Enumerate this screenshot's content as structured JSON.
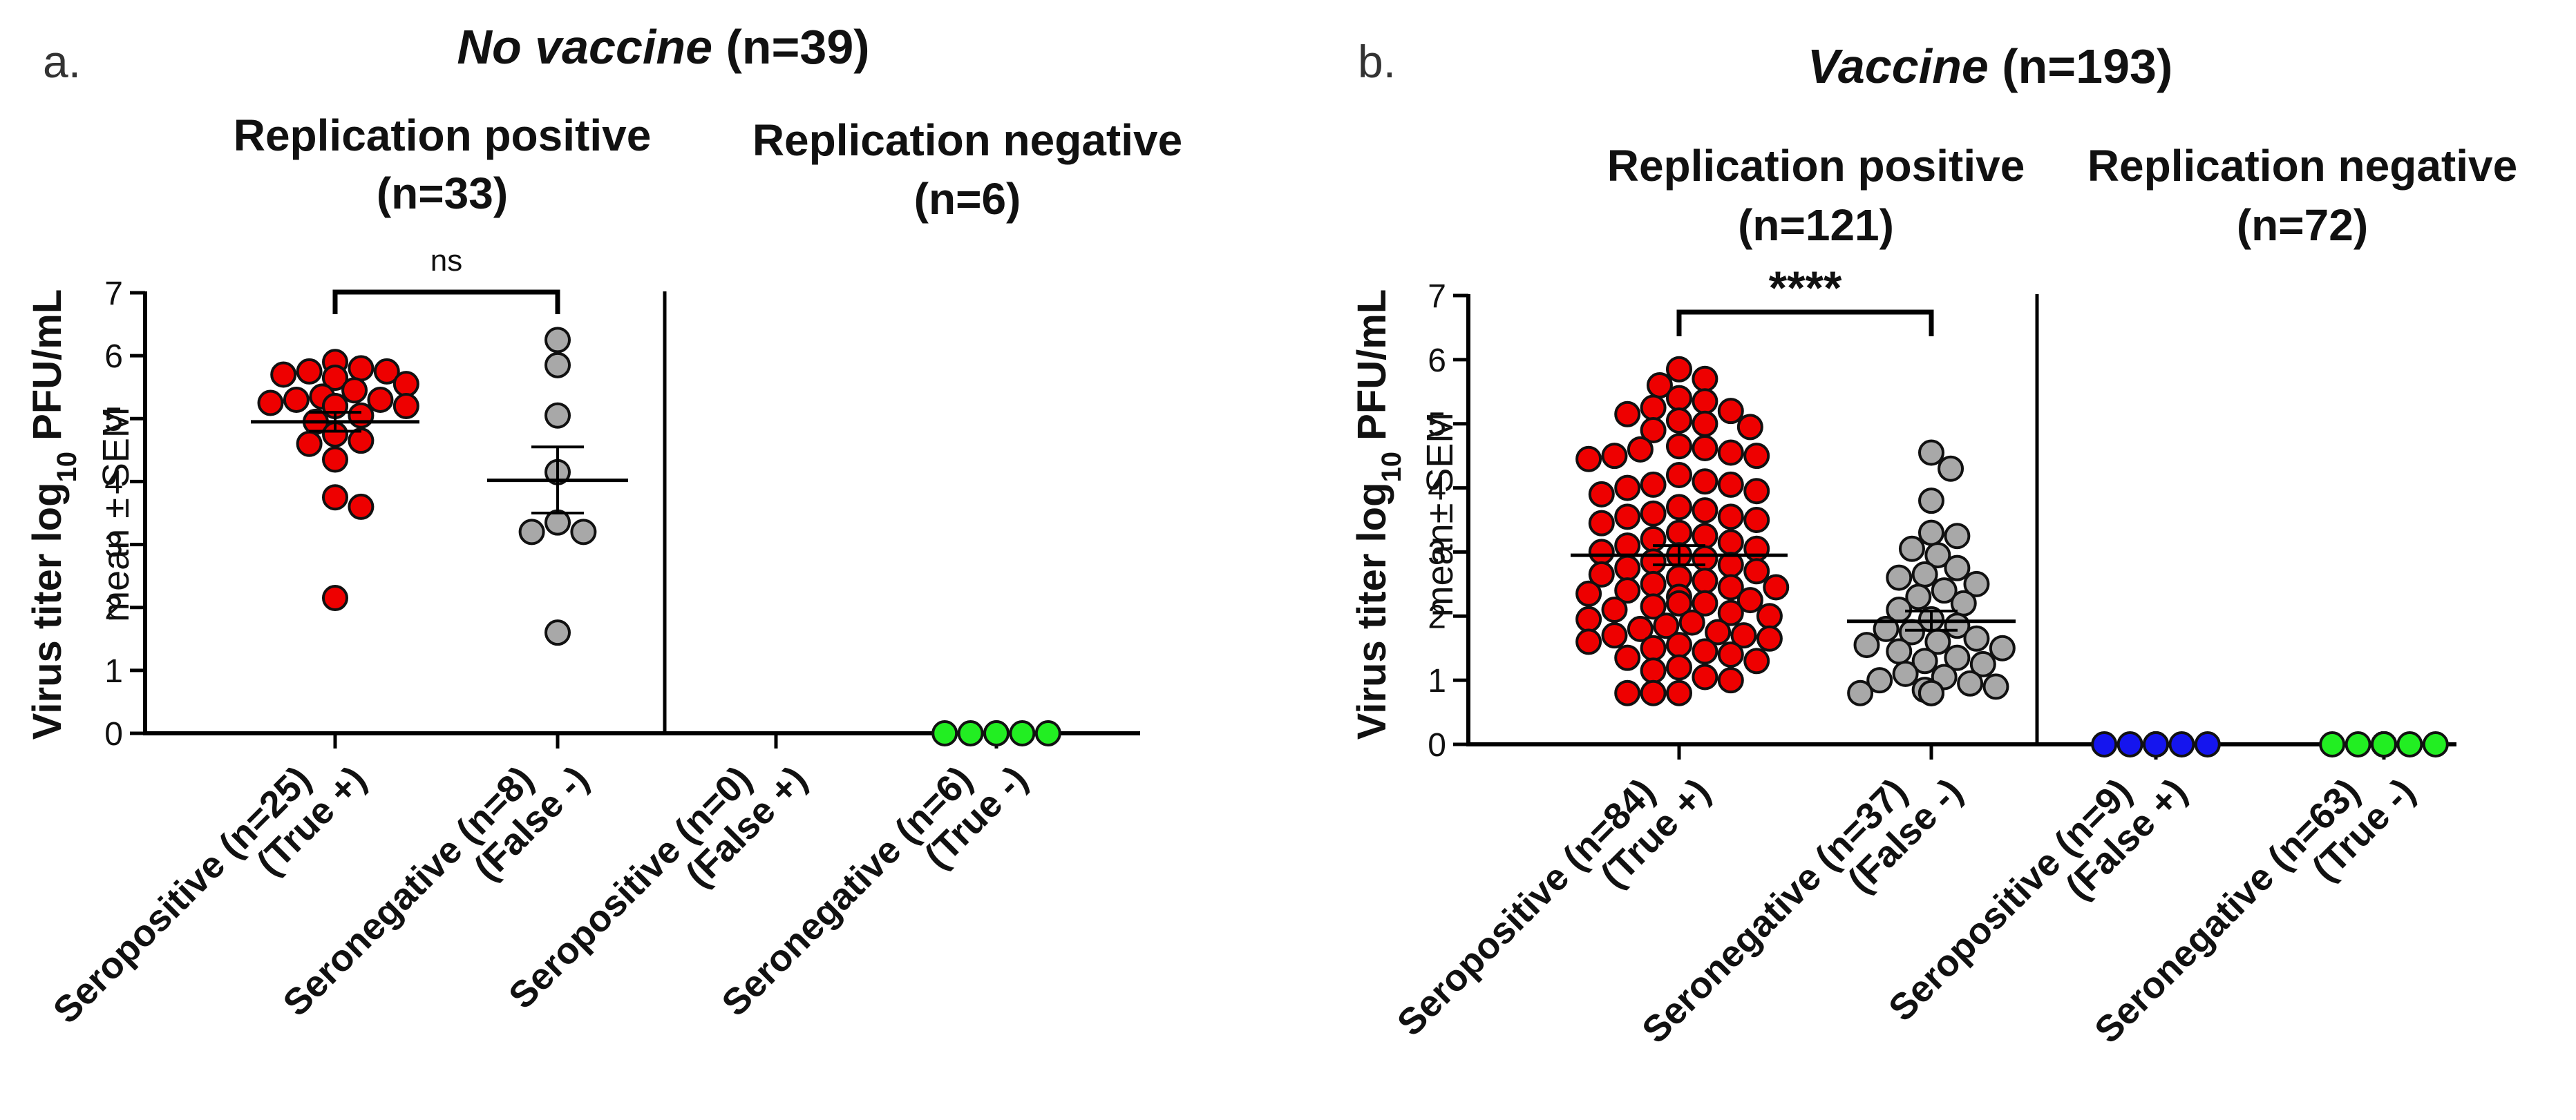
{
  "chart_data": [
    {
      "type": "scatter",
      "panel_letter": "a.",
      "title_italic": "No vaccine",
      "title_rest": " (n=39)",
      "groups": [
        {
          "label_line1": "Replication positive",
          "label_line2": "(n=33)"
        },
        {
          "label_line1": "Replication negative",
          "label_line2": "(n=6)"
        }
      ],
      "ylabel_line1_a": "Virus titer log",
      "ylabel_line1_sub": "10",
      "ylabel_line1_b": " PFU/mL",
      "ylabel_line2": "mean ± SEM",
      "ylim": [
        0,
        7
      ],
      "yticks": [
        "0",
        "1",
        "2",
        "3",
        "4",
        "5",
        "6",
        "7"
      ],
      "significance": "ns",
      "categories": [
        {
          "line1": "Seropositive (n=25)",
          "line2": "(True +)",
          "color": "#ee0000",
          "values": [
            5.65,
            5.75,
            5.8,
            5.9,
            5.75,
            5.7,
            5.65,
            5.55,
            5.45,
            5.35,
            5.3,
            5.3,
            5.25,
            5.2,
            5.2,
            5.2,
            5.05,
            4.95,
            4.75,
            4.65,
            4.6,
            4.35,
            3.75,
            3.6,
            2.15
          ],
          "mean": 4.95,
          "sem_low": 4.8,
          "sem_high": 5.1
        },
        {
          "line1": "Seronegative (n=8)",
          "line2": "(False -)",
          "color": "#a8a8a8",
          "values": [
            6.25,
            5.85,
            5.05,
            4.15,
            3.35,
            3.2,
            3.2,
            1.6
          ],
          "mean": 4.02,
          "sem_low": 3.5,
          "sem_high": 4.55
        },
        {
          "line1": "Seropositive (n=0)",
          "line2": "(False +)",
          "color": "#ee0000",
          "values": [],
          "mean": null,
          "sem_low": null,
          "sem_high": null
        },
        {
          "line1": "Seronegative (n=6)",
          "line2": "(True -)",
          "color": "#22ee22",
          "values": [
            0,
            0,
            0,
            0,
            0,
            0
          ],
          "mean": 0,
          "sem_low": 0,
          "sem_high": 0
        }
      ]
    },
    {
      "type": "scatter",
      "panel_letter": "b.",
      "title_italic": "Vaccine",
      "title_rest": " (n=193)",
      "groups": [
        {
          "label_line1": "Replication positive",
          "label_line2": "(n=121)"
        },
        {
          "label_line1": "Replication negative",
          "label_line2": "(n=72)"
        }
      ],
      "ylabel_line1_a": "Virus titer log",
      "ylabel_line1_sub": "10",
      "ylabel_line1_b": " PFU/mL",
      "ylabel_line2": "mean± SEM",
      "ylim": [
        0,
        7
      ],
      "yticks": [
        "0",
        "1",
        "2",
        "3",
        "4",
        "5",
        "6",
        "7"
      ],
      "significance": "****",
      "categories": [
        {
          "line1": "Seropositive (n=84)",
          "line2": "(True +)",
          "color": "#ee0000",
          "values": [
            5.85,
            5.7,
            5.6,
            5.4,
            5.35,
            5.25,
            5.2,
            5.15,
            5.05,
            5.0,
            4.95,
            4.9,
            4.65,
            4.62,
            4.6,
            4.55,
            4.5,
            4.5,
            4.45,
            4.2,
            4.1,
            4.05,
            4.05,
            4.0,
            3.95,
            3.9,
            3.7,
            3.6,
            3.55,
            3.55,
            3.5,
            3.45,
            3.3,
            3.25,
            3.2,
            3.15,
            3.1,
            3.05,
            3.0,
            2.95,
            2.9,
            2.85,
            2.8,
            2.75,
            2.7,
            2.65,
            2.6,
            2.55,
            2.5,
            2.45,
            2.4,
            2.35,
            2.3,
            2.25,
            2.2,
            2.2,
            2.15,
            2.1,
            2.05,
            2.0,
            1.95,
            1.9,
            1.85,
            1.8,
            1.75,
            1.7,
            1.7,
            1.65,
            1.6,
            1.55,
            1.5,
            1.45,
            1.4,
            1.35,
            1.3,
            1.2,
            1.15,
            1.05,
            1.0,
            0.8,
            0.8,
            0.8,
            2.45,
            3.65
          ],
          "mean": 2.95,
          "sem_low": 2.8,
          "sem_high": 3.1
        },
        {
          "line1": "Seronegative (n=37)",
          "line2": "(False -)",
          "color": "#a8a8a8",
          "values": [
            4.55,
            4.3,
            3.8,
            3.3,
            3.25,
            3.05,
            2.95,
            2.75,
            2.65,
            2.6,
            2.5,
            2.4,
            2.3,
            2.2,
            2.1,
            1.95,
            1.85,
            1.8,
            1.75,
            1.65,
            1.6,
            1.55,
            1.5,
            1.45,
            1.35,
            1.3,
            1.25,
            1.1,
            1.05,
            1.0,
            0.95,
            0.9,
            0.85,
            0.8,
            0.8,
            0.8,
            0.8
          ],
          "mean": 1.92,
          "sem_low": 1.78,
          "sem_high": 2.08
        },
        {
          "line1": "Seropositive (n=9)",
          "line2": "(False +)",
          "color": "#1515ee",
          "values": [
            0,
            0,
            0,
            0,
            0,
            0,
            0,
            0,
            0
          ],
          "mean": 0,
          "sem_low": 0,
          "sem_high": 0
        },
        {
          "line1": "Seronegative (n=63)",
          "line2": "(True -)",
          "color": "#22ee22",
          "values": [
            0,
            0,
            0,
            0,
            0,
            0,
            0,
            0,
            0,
            0,
            0,
            0,
            0,
            0,
            0,
            0,
            0,
            0,
            0,
            0,
            0,
            0,
            0,
            0,
            0,
            0,
            0,
            0,
            0,
            0,
            0,
            0,
            0,
            0,
            0,
            0,
            0,
            0,
            0,
            0,
            0,
            0,
            0,
            0,
            0,
            0,
            0,
            0,
            0,
            0,
            0,
            0,
            0,
            0,
            0,
            0,
            0,
            0,
            0,
            0,
            0,
            0,
            0
          ],
          "mean": 0,
          "sem_low": 0,
          "sem_high": 0
        }
      ]
    }
  ]
}
